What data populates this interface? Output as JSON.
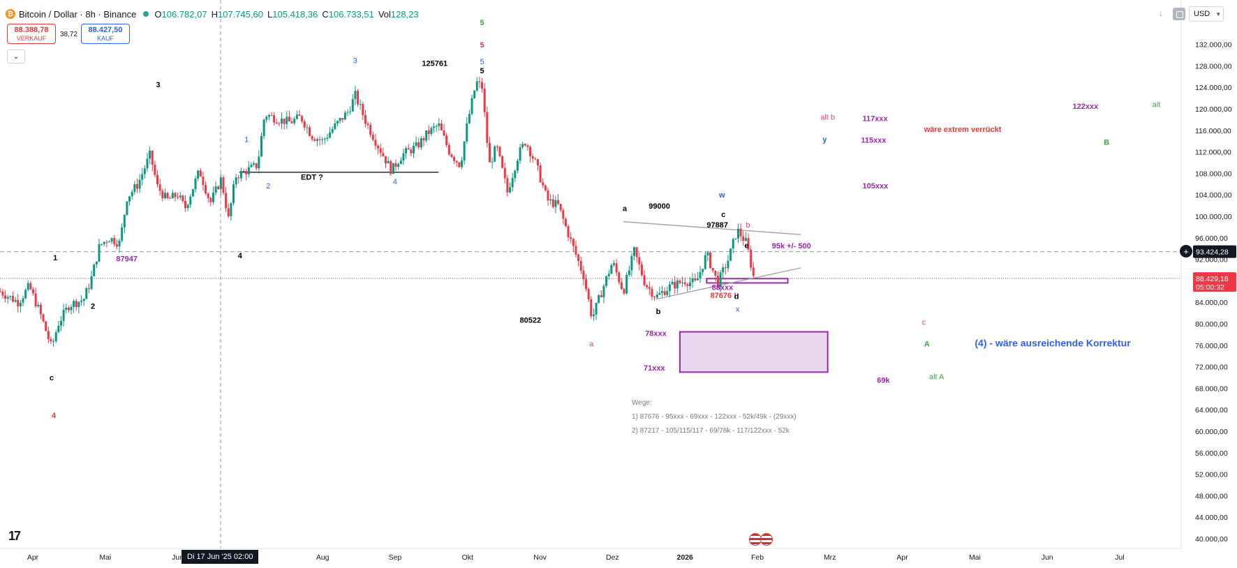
{
  "header": {
    "symbol": "Bitcoin / Dollar · 8h · Binance",
    "coin_icon": "bitcoin-icon",
    "open_k": "O",
    "open_v": "106.782,07",
    "high_k": "H",
    "high_v": "107.745,60",
    "low_k": "L",
    "low_v": "105.418,36",
    "close_k": "C",
    "close_v": "106.733,51",
    "vol_k": "Vol",
    "vol_v": "128,23",
    "status_color": "#26a69a"
  },
  "trade": {
    "sell_price": "88.388,78",
    "sell_label": "VERKAUF",
    "spread": "38,72",
    "buy_price": "88.427,50",
    "buy_label": "KAUF"
  },
  "toolbar": {
    "currency": "USD",
    "collapse_icon": "chevron-down-icon"
  },
  "crosshair_label": "Di 17 Jun '25    02:00",
  "chart_data": {
    "type": "candlestick",
    "title": "Bitcoin / Dollar · 8h · Binance",
    "ylim": [
      38500,
      136000
    ],
    "y_ticks": [
      132000,
      128000,
      124000,
      120000,
      116000,
      112000,
      108000,
      104000,
      100000,
      96000,
      92000,
      88000,
      84000,
      80000,
      76000,
      72000,
      68000,
      64000,
      60000,
      56000,
      52000,
      48000,
      44000,
      40000
    ],
    "y_tick_labels": [
      "132.000,00",
      "128.000,00",
      "124.000,00",
      "120.000,00",
      "116.000,00",
      "112.000,00",
      "108.000,00",
      "104.000,00",
      "100.000,00",
      "96.000,00",
      "92.000,00",
      "88.000,00",
      "84.000,00",
      "80.000,00",
      "76.000,00",
      "72.000,00",
      "68.000,00",
      "64.000,00",
      "60.000,00",
      "56.000,00",
      "52.000,00",
      "48.000,00",
      "44.000,00",
      "40.000,00"
    ],
    "x_ticks": [
      "Apr",
      "Mai",
      "Jun",
      "Jul",
      "Aug",
      "Sep",
      "Okt",
      "Nov",
      "Dez",
      "2026",
      "Feb",
      "Mrz",
      "Apr",
      "Mai",
      "Jun",
      "Jul"
    ],
    "x_tick_pos": [
      0,
      1,
      2,
      3,
      4,
      5,
      6,
      7,
      8,
      9,
      10,
      11,
      12,
      13,
      14,
      15
    ],
    "price_path": [
      [
        -0.45,
        86000
      ],
      [
        -0.2,
        84000
      ],
      [
        -0.05,
        87000
      ],
      [
        0.1,
        82000
      ],
      [
        0.26,
        75500
      ],
      [
        0.35,
        80000
      ],
      [
        0.5,
        83500
      ],
      [
        0.7,
        84500
      ],
      [
        0.8,
        88000
      ],
      [
        0.92,
        94500
      ],
      [
        1.05,
        96000
      ],
      [
        1.2,
        95000
      ],
      [
        1.3,
        103500
      ],
      [
        1.45,
        106000
      ],
      [
        1.62,
        111500
      ],
      [
        1.72,
        105500
      ],
      [
        1.85,
        103000
      ],
      [
        2.0,
        104000
      ],
      [
        2.1,
        101500
      ],
      [
        2.3,
        108500
      ],
      [
        2.45,
        102500
      ],
      [
        2.6,
        107000
      ],
      [
        2.7,
        99500
      ],
      [
        2.8,
        107500
      ],
      [
        2.95,
        108500
      ],
      [
        3.1,
        109500
      ],
      [
        3.2,
        119000
      ],
      [
        3.4,
        118000
      ],
      [
        3.55,
        117500
      ],
      [
        3.7,
        118500
      ],
      [
        3.85,
        115000
      ],
      [
        4.0,
        114000
      ],
      [
        4.15,
        116500
      ],
      [
        4.35,
        119500
      ],
      [
        4.45,
        122500
      ],
      [
        4.6,
        117500
      ],
      [
        4.75,
        113500
      ],
      [
        4.95,
        108500
      ],
      [
        5.1,
        111500
      ],
      [
        5.3,
        113000
      ],
      [
        5.45,
        115500
      ],
      [
        5.6,
        117000
      ],
      [
        5.75,
        112000
      ],
      [
        5.9,
        109500
      ],
      [
        6.0,
        117500
      ],
      [
        6.12,
        125000
      ],
      [
        6.2,
        124000
      ],
      [
        6.3,
        109500
      ],
      [
        6.4,
        113000
      ],
      [
        6.55,
        104500
      ],
      [
        6.7,
        111500
      ],
      [
        6.8,
        114000
      ],
      [
        6.95,
        109500
      ],
      [
        7.1,
        103000
      ],
      [
        7.25,
        102000
      ],
      [
        7.45,
        94500
      ],
      [
        7.6,
        89000
      ],
      [
        7.72,
        81000
      ],
      [
        7.85,
        86000
      ],
      [
        8.0,
        91500
      ],
      [
        8.15,
        86000
      ],
      [
        8.3,
        93500
      ],
      [
        8.45,
        87500
      ],
      [
        8.6,
        85000
      ],
      [
        8.8,
        87000
      ],
      [
        9.0,
        88000
      ],
      [
        9.15,
        87500
      ],
      [
        9.3,
        93000
      ],
      [
        9.45,
        87500
      ],
      [
        9.6,
        92000
      ],
      [
        9.72,
        97500
      ],
      [
        9.85,
        95000
      ],
      [
        9.95,
        88500
      ]
    ],
    "current_price": 93424.28,
    "current_price_label": "93.424,28",
    "last_price": 88429.18,
    "last_price_label": "88.429,18",
    "countdown": "05:00:32",
    "annotations": [
      {
        "text": "1",
        "x": 0.28,
        "y": 91800,
        "color": "#000000",
        "weight": "bold"
      },
      {
        "text": "2",
        "x": 0.8,
        "y": 82800,
        "color": "#000000",
        "weight": "bold"
      },
      {
        "text": "c",
        "x": 0.23,
        "y": 69500,
        "color": "#000000",
        "weight": "bold"
      },
      {
        "text": "4",
        "x": 0.26,
        "y": 62500,
        "color": "#e53935",
        "weight": "bold"
      },
      {
        "text": "87947",
        "x": 1.15,
        "y": 91600,
        "color": "#9c27b0",
        "weight": "bold"
      },
      {
        "text": "3",
        "x": 1.7,
        "y": 124000,
        "color": "#000000",
        "weight": "bold"
      },
      {
        "text": "4",
        "x": 2.83,
        "y": 92200,
        "color": "#000000",
        "weight": "bold"
      },
      {
        "text": "1",
        "x": 2.92,
        "y": 113800,
        "color": "#2962ff",
        "weight": "normal"
      },
      {
        "text": "2",
        "x": 3.22,
        "y": 105200,
        "color": "#2962ff",
        "weight": "normal"
      },
      {
        "text": "EDT ?",
        "x": 3.7,
        "y": 106800,
        "color": "#000000",
        "weight": "bold"
      },
      {
        "text": "3",
        "x": 4.42,
        "y": 128500,
        "color": "#2962ff",
        "weight": "normal"
      },
      {
        "text": "4",
        "x": 4.97,
        "y": 106000,
        "color": "#2962ff",
        "weight": "normal"
      },
      {
        "text": "125761",
        "x": 5.37,
        "y": 128000,
        "color": "#000000",
        "weight": "bold"
      },
      {
        "text": "5",
        "x": 6.17,
        "y": 126600,
        "color": "#000000",
        "weight": "bold"
      },
      {
        "text": "5",
        "x": 6.17,
        "y": 128300,
        "color": "#2962ff",
        "weight": "normal"
      },
      {
        "text": "5",
        "x": 6.17,
        "y": 131400,
        "color": "#e53935",
        "weight": "bold"
      },
      {
        "text": "5",
        "x": 6.17,
        "y": 135600,
        "color": "#43a047",
        "weight": "bold"
      },
      {
        "text": "80522",
        "x": 6.72,
        "y": 80200,
        "color": "#000000",
        "weight": "bold"
      },
      {
        "text": "a",
        "x": 7.68,
        "y": 75800,
        "color": "#ec407a",
        "weight": "normal"
      },
      {
        "text": "a",
        "x": 8.14,
        "y": 101000,
        "color": "#000000",
        "weight": "bold"
      },
      {
        "text": "99000",
        "x": 8.5,
        "y": 101400,
        "color": "#000000",
        "weight": "bold"
      },
      {
        "text": "b",
        "x": 8.6,
        "y": 81800,
        "color": "#000000",
        "weight": "bold"
      },
      {
        "text": "78xxx",
        "x": 8.45,
        "y": 77700,
        "color": "#9c27b0",
        "weight": "bold"
      },
      {
        "text": "71xxx",
        "x": 8.43,
        "y": 71300,
        "color": "#9c27b0",
        "weight": "bold"
      },
      {
        "text": "w",
        "x": 9.47,
        "y": 103500,
        "color": "#2962ff",
        "weight": "bold"
      },
      {
        "text": "c",
        "x": 9.5,
        "y": 99900,
        "color": "#000000",
        "weight": "bold"
      },
      {
        "text": "97887",
        "x": 9.3,
        "y": 97900,
        "color": "#000000",
        "weight": "bold"
      },
      {
        "text": "b",
        "x": 9.84,
        "y": 97900,
        "color": "#ec407a",
        "weight": "normal"
      },
      {
        "text": "e",
        "x": 9.82,
        "y": 94100,
        "color": "#000000",
        "weight": "bold"
      },
      {
        "text": "95k +/- 500",
        "x": 10.2,
        "y": 94000,
        "color": "#9c27b0",
        "weight": "bold"
      },
      {
        "text": "88xxx",
        "x": 9.37,
        "y": 86300,
        "color": "#9c27b0",
        "weight": "bold"
      },
      {
        "text": "87676 !",
        "x": 9.35,
        "y": 84800,
        "color": "#e53935",
        "weight": "bold"
      },
      {
        "text": "d",
        "x": 9.68,
        "y": 84600,
        "color": "#000000",
        "weight": "bold"
      },
      {
        "text": "x",
        "x": 9.7,
        "y": 82300,
        "color": "#2962ff",
        "weight": "normal"
      },
      {
        "text": "alt b",
        "x": 10.87,
        "y": 118000,
        "color": "#ec407a",
        "weight": "normal"
      },
      {
        "text": "y",
        "x": 10.9,
        "y": 113800,
        "color": "#2962ff",
        "weight": "bold"
      },
      {
        "text": "117xxx",
        "x": 11.45,
        "y": 117700,
        "color": "#9c27b0",
        "weight": "bold"
      },
      {
        "text": "115xxx",
        "x": 11.43,
        "y": 113700,
        "color": "#9c27b0",
        "weight": "bold"
      },
      {
        "text": "105xxx",
        "x": 11.45,
        "y": 105200,
        "color": "#9c27b0",
        "weight": "bold"
      },
      {
        "text": "wäre extrem verrückt",
        "x": 12.3,
        "y": 115700,
        "color": "#e53935",
        "weight": "bold"
      },
      {
        "text": "c",
        "x": 12.27,
        "y": 79800,
        "color": "#ec407a",
        "weight": "normal"
      },
      {
        "text": "A",
        "x": 12.3,
        "y": 75800,
        "color": "#43a047",
        "weight": "bold"
      },
      {
        "text": "alt A",
        "x": 12.37,
        "y": 69700,
        "color": "#43a047",
        "weight": "normal"
      },
      {
        "text": "69k",
        "x": 11.65,
        "y": 69000,
        "color": "#9c27b0",
        "weight": "bold"
      },
      {
        "text": "(4) - wäre ausreichende Korrektur",
        "x": 13.0,
        "y": 75800,
        "color": "#2962ff",
        "weight": "bold",
        "size": 14
      },
      {
        "text": "122xxx",
        "x": 14.35,
        "y": 120000,
        "color": "#9c27b0",
        "weight": "bold"
      },
      {
        "text": "B",
        "x": 14.78,
        "y": 113300,
        "color": "#43a047",
        "weight": "bold"
      },
      {
        "text": "alt",
        "x": 15.45,
        "y": 120300,
        "color": "#43a047",
        "weight": "normal"
      }
    ],
    "lines": [
      {
        "from": [
          2.85,
          108200
        ],
        "to": [
          5.6,
          108200
        ],
        "color": "#000000"
      },
      {
        "from": [
          8.15,
          99000
        ],
        "to": [
          10.6,
          96600
        ],
        "color": "#9e9e9e"
      },
      {
        "from": [
          8.6,
          84600
        ],
        "to": [
          10.6,
          90400
        ],
        "color": "#9e9e9e"
      }
    ],
    "zones": [
      {
        "x0": 9.3,
        "x1": 10.42,
        "y0": 87600,
        "y1": 88400,
        "color": "#9c27b0",
        "fill": "#ffffff"
      },
      {
        "x0": 8.93,
        "x1": 10.97,
        "y0": 71000,
        "y1": 78500,
        "color": "#9c27b0",
        "fill": "#e8d5ee"
      }
    ],
    "scenarios_title": "Wege:",
    "scenarios": [
      "1) 87676 - 95xxx - 69xxx - 122xxx - 52k/49k - (29xxx)",
      "2) 87217 - 105/115/117 - 69/78k - 117/122xxx - 52k"
    ],
    "grid": false,
    "legend": "none"
  }
}
